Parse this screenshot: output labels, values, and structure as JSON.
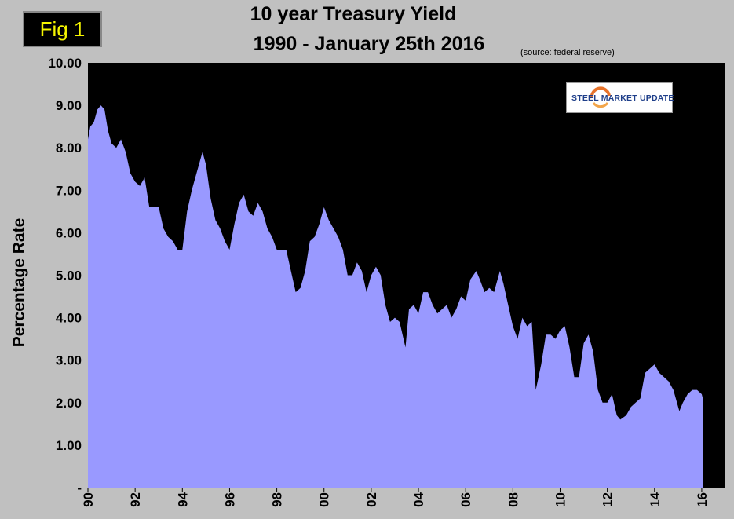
{
  "figure": {
    "badge": "Fig 1",
    "logo_text": "STEEL MARKET UPDATE"
  },
  "chart_data": {
    "type": "area",
    "title": "10 year Treasury Yield",
    "subtitle": "1990 - January 25th 2016",
    "source": "(source: federal reserve)",
    "ylabel": "Percentage Rate",
    "xlabel": "",
    "ylim": [
      0,
      10
    ],
    "xlim": [
      1990,
      2017
    ],
    "y_ticks": [
      "-",
      "1.00",
      "2.00",
      "3.00",
      "4.00",
      "5.00",
      "6.00",
      "7.00",
      "8.00",
      "9.00",
      "10.00"
    ],
    "x_ticks": [
      "90",
      "92",
      "94",
      "96",
      "98",
      "00",
      "02",
      "04",
      "06",
      "08",
      "10",
      "12",
      "14",
      "16"
    ],
    "grid": false,
    "colors": {
      "fill": "#9999ff",
      "plot_bg": "#000000",
      "page_bg": "#c0c0c0"
    },
    "series": [
      {
        "x": [
          1990.0,
          1990.1,
          1990.25,
          1990.4,
          1990.55,
          1990.7,
          1990.85,
          1991.0,
          1991.2,
          1991.4,
          1991.6,
          1991.8,
          1992.0,
          1992.2,
          1992.4,
          1992.6,
          1992.8,
          1993.0,
          1993.2,
          1993.4,
          1993.6,
          1993.8,
          1994.0,
          1994.2,
          1994.4,
          1994.6,
          1994.85,
          1995.0,
          1995.2,
          1995.4,
          1995.6,
          1995.8,
          1996.0,
          1996.2,
          1996.4,
          1996.6,
          1996.8,
          1997.0,
          1997.2,
          1997.4,
          1997.6,
          1997.8,
          1998.0,
          1998.2,
          1998.4,
          1998.6,
          1998.8,
          1999.0,
          1999.2,
          1999.4,
          1999.6,
          1999.8,
          2000.0,
          2000.2,
          2000.4,
          2000.6,
          2000.8,
          2001.0,
          2001.2,
          2001.4,
          2001.6,
          2001.8,
          2002.0,
          2002.2,
          2002.4,
          2002.6,
          2002.8,
          2003.0,
          2003.2,
          2003.45,
          2003.6,
          2003.8,
          2004.0,
          2004.2,
          2004.4,
          2004.6,
          2004.8,
          2005.0,
          2005.2,
          2005.4,
          2005.6,
          2005.8,
          2006.0,
          2006.2,
          2006.45,
          2006.6,
          2006.8,
          2007.0,
          2007.2,
          2007.45,
          2007.6,
          2007.8,
          2008.0,
          2008.2,
          2008.4,
          2008.6,
          2008.8,
          2008.97,
          2009.2,
          2009.4,
          2009.6,
          2009.8,
          2010.0,
          2010.2,
          2010.4,
          2010.6,
          2010.8,
          2011.0,
          2011.2,
          2011.4,
          2011.6,
          2011.8,
          2012.0,
          2012.2,
          2012.4,
          2012.55,
          2012.8,
          2013.0,
          2013.2,
          2013.4,
          2013.6,
          2013.8,
          2014.0,
          2014.2,
          2014.4,
          2014.6,
          2014.8,
          2015.05,
          2015.2,
          2015.4,
          2015.6,
          2015.8,
          2016.0,
          2016.07
        ],
        "y": [
          8.2,
          8.5,
          8.6,
          8.9,
          9.0,
          8.9,
          8.4,
          8.1,
          8.0,
          8.2,
          7.9,
          7.4,
          7.2,
          7.1,
          7.3,
          6.6,
          6.6,
          6.6,
          6.1,
          5.9,
          5.8,
          5.6,
          5.6,
          6.5,
          7.0,
          7.4,
          7.9,
          7.6,
          6.8,
          6.3,
          6.1,
          5.8,
          5.6,
          6.2,
          6.7,
          6.9,
          6.5,
          6.4,
          6.7,
          6.5,
          6.1,
          5.9,
          5.6,
          5.6,
          5.6,
          5.1,
          4.6,
          4.7,
          5.1,
          5.8,
          5.9,
          6.2,
          6.6,
          6.3,
          6.1,
          5.9,
          5.6,
          5.0,
          5.0,
          5.3,
          5.1,
          4.6,
          5.0,
          5.2,
          5.0,
          4.3,
          3.9,
          4.0,
          3.9,
          3.3,
          4.2,
          4.3,
          4.1,
          4.6,
          4.6,
          4.3,
          4.1,
          4.2,
          4.3,
          4.0,
          4.2,
          4.5,
          4.4,
          4.9,
          5.1,
          4.9,
          4.6,
          4.7,
          4.6,
          5.1,
          4.8,
          4.3,
          3.8,
          3.5,
          4.0,
          3.8,
          3.9,
          2.3,
          2.9,
          3.6,
          3.6,
          3.5,
          3.7,
          3.8,
          3.3,
          2.6,
          2.6,
          3.4,
          3.6,
          3.2,
          2.3,
          2.0,
          2.0,
          2.2,
          1.7,
          1.6,
          1.7,
          1.9,
          2.0,
          2.1,
          2.7,
          2.8,
          2.9,
          2.7,
          2.6,
          2.5,
          2.3,
          1.8,
          2.0,
          2.2,
          2.3,
          2.3,
          2.2,
          2.05
        ]
      }
    ]
  }
}
